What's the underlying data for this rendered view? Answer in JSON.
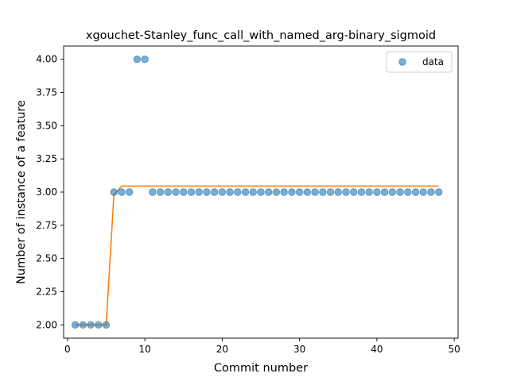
{
  "chart_data": {
    "type": "scatter",
    "title": "xgouchet-Stanley_func_call_with_named_arg-binary_sigmoid",
    "xlabel": "Commit number",
    "ylabel": "Number of instance of a feature",
    "xlim": [
      -0.5,
      50.5
    ],
    "ylim": [
      1.9,
      4.1
    ],
    "xticks": [
      0,
      10,
      20,
      30,
      40,
      50
    ],
    "yticks": [
      2.0,
      2.25,
      2.5,
      2.75,
      3.0,
      3.25,
      3.5,
      3.75,
      4.0
    ],
    "xtick_labels": [
      "0",
      "10",
      "20",
      "30",
      "40",
      "50"
    ],
    "ytick_labels": [
      "2.00",
      "2.25",
      "2.50",
      "2.75",
      "3.00",
      "3.25",
      "3.50",
      "3.75",
      "4.00"
    ],
    "grid": false,
    "legend": {
      "position": "top-right",
      "entries": [
        "data"
      ]
    },
    "series": [
      {
        "name": "data",
        "kind": "scatter",
        "color": "#1f77b4",
        "x": [
          1,
          2,
          3,
          4,
          5,
          6,
          7,
          8,
          9,
          10,
          11,
          12,
          13,
          14,
          15,
          16,
          17,
          18,
          19,
          20,
          21,
          22,
          23,
          24,
          25,
          26,
          27,
          28,
          29,
          30,
          31,
          32,
          33,
          34,
          35,
          36,
          37,
          38,
          39,
          40,
          41,
          42,
          43,
          44,
          45,
          46,
          47,
          48
        ],
        "y": [
          2,
          2,
          2,
          2,
          2,
          3,
          3,
          3,
          4,
          4,
          3,
          3,
          3,
          3,
          3,
          3,
          3,
          3,
          3,
          3,
          3,
          3,
          3,
          3,
          3,
          3,
          3,
          3,
          3,
          3,
          3,
          3,
          3,
          3,
          3,
          3,
          3,
          3,
          3,
          3,
          3,
          3,
          3,
          3,
          3,
          3,
          3,
          3
        ]
      },
      {
        "kind": "line",
        "color": "#ff7f0e",
        "x": [
          1,
          5,
          6,
          7,
          48
        ],
        "y": [
          2.0,
          2.0,
          2.98,
          3.045,
          3.045
        ]
      }
    ]
  }
}
